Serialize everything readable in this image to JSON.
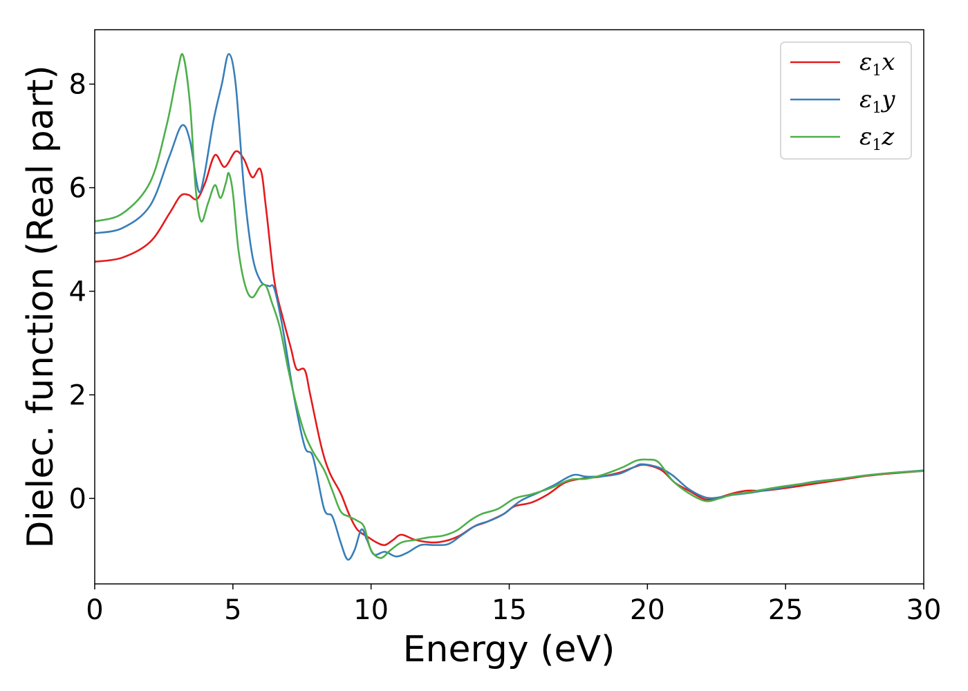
{
  "chart_data": {
    "type": "line",
    "xlabel": "Energy (eV)",
    "ylabel": "Dielec. function (Real part)",
    "xlim": [
      0,
      30
    ],
    "ylim": [
      -1.65,
      9.05
    ],
    "xticks": [
      0,
      5,
      10,
      15,
      20,
      25,
      30
    ],
    "yticks": [
      0,
      2,
      4,
      6,
      8
    ],
    "grid": false,
    "legend_position": "top-right",
    "series": [
      {
        "name": "ε₁x",
        "legend_base": "ε",
        "legend_sub": "1",
        "legend_suffix": "x",
        "color": "#e41a1c",
        "points": [
          [
            0,
            4.57
          ],
          [
            1,
            4.65
          ],
          [
            2,
            4.95
          ],
          [
            2.7,
            5.5
          ],
          [
            3.1,
            5.84
          ],
          [
            3.4,
            5.86
          ],
          [
            3.7,
            5.78
          ],
          [
            4.0,
            6.1
          ],
          [
            4.35,
            6.63
          ],
          [
            4.7,
            6.4
          ],
          [
            5.1,
            6.7
          ],
          [
            5.4,
            6.55
          ],
          [
            5.7,
            6.2
          ],
          [
            6.0,
            6.35
          ],
          [
            6.2,
            5.6
          ],
          [
            6.5,
            4.2
          ],
          [
            6.8,
            3.5
          ],
          [
            7.1,
            2.9
          ],
          [
            7.3,
            2.5
          ],
          [
            7.6,
            2.48
          ],
          [
            7.8,
            2.0
          ],
          [
            8.2,
            1.0
          ],
          [
            8.5,
            0.5
          ],
          [
            8.9,
            0.1
          ],
          [
            9.2,
            -0.3
          ],
          [
            9.5,
            -0.6
          ],
          [
            9.9,
            -0.75
          ],
          [
            10.2,
            -0.85
          ],
          [
            10.5,
            -0.9
          ],
          [
            10.8,
            -0.8
          ],
          [
            11.1,
            -0.7
          ],
          [
            11.6,
            -0.8
          ],
          [
            12.2,
            -0.85
          ],
          [
            12.7,
            -0.82
          ],
          [
            13.2,
            -0.72
          ],
          [
            13.7,
            -0.55
          ],
          [
            14.2,
            -0.45
          ],
          [
            14.8,
            -0.3
          ],
          [
            15.2,
            -0.15
          ],
          [
            15.8,
            -0.08
          ],
          [
            16.4,
            0.08
          ],
          [
            17.0,
            0.3
          ],
          [
            17.6,
            0.38
          ],
          [
            18.3,
            0.42
          ],
          [
            19.0,
            0.5
          ],
          [
            19.5,
            0.6
          ],
          [
            19.9,
            0.65
          ],
          [
            20.5,
            0.55
          ],
          [
            21.0,
            0.3
          ],
          [
            21.5,
            0.15
          ],
          [
            22.1,
            -0.02
          ],
          [
            22.6,
            0.02
          ],
          [
            23.1,
            0.1
          ],
          [
            23.6,
            0.15
          ],
          [
            24.2,
            0.15
          ],
          [
            25.0,
            0.2
          ],
          [
            26.0,
            0.28
          ],
          [
            27.0,
            0.36
          ],
          [
            28.0,
            0.44
          ],
          [
            29.0,
            0.49
          ],
          [
            30,
            0.53
          ]
        ]
      },
      {
        "name": "ε₁y",
        "legend_base": "ε",
        "legend_sub": "1",
        "legend_suffix": "y",
        "color": "#377eb8",
        "points": [
          [
            0,
            5.12
          ],
          [
            1,
            5.22
          ],
          [
            2,
            5.65
          ],
          [
            2.7,
            6.6
          ],
          [
            3.15,
            7.2
          ],
          [
            3.45,
            6.9
          ],
          [
            3.75,
            5.95
          ],
          [
            3.95,
            6.2
          ],
          [
            4.3,
            7.3
          ],
          [
            4.6,
            8.0
          ],
          [
            4.85,
            8.58
          ],
          [
            5.1,
            8.0
          ],
          [
            5.4,
            6.0
          ],
          [
            5.7,
            4.7
          ],
          [
            6.0,
            4.2
          ],
          [
            6.3,
            4.1
          ],
          [
            6.5,
            4.05
          ],
          [
            6.8,
            3.3
          ],
          [
            7.2,
            2.0
          ],
          [
            7.6,
            1.0
          ],
          [
            7.9,
            0.8
          ],
          [
            8.3,
            -0.2
          ],
          [
            8.6,
            -0.35
          ],
          [
            8.9,
            -0.85
          ],
          [
            9.15,
            -1.18
          ],
          [
            9.4,
            -1.0
          ],
          [
            9.65,
            -0.6
          ],
          [
            9.85,
            -0.8
          ],
          [
            10.1,
            -1.08
          ],
          [
            10.5,
            -1.03
          ],
          [
            10.9,
            -1.12
          ],
          [
            11.3,
            -1.05
          ],
          [
            11.8,
            -0.9
          ],
          [
            12.3,
            -0.9
          ],
          [
            12.8,
            -0.88
          ],
          [
            13.3,
            -0.7
          ],
          [
            13.8,
            -0.52
          ],
          [
            14.3,
            -0.43
          ],
          [
            14.8,
            -0.3
          ],
          [
            15.4,
            -0.05
          ],
          [
            16.0,
            0.1
          ],
          [
            16.6,
            0.25
          ],
          [
            17.3,
            0.45
          ],
          [
            17.8,
            0.42
          ],
          [
            18.4,
            0.43
          ],
          [
            19.0,
            0.48
          ],
          [
            19.5,
            0.6
          ],
          [
            19.8,
            0.66
          ],
          [
            20.4,
            0.6
          ],
          [
            20.9,
            0.45
          ],
          [
            21.5,
            0.18
          ],
          [
            22.1,
            0.02
          ],
          [
            22.6,
            0.02
          ],
          [
            23.1,
            0.07
          ],
          [
            23.6,
            0.1
          ],
          [
            24.2,
            0.15
          ],
          [
            25.0,
            0.22
          ],
          [
            26.0,
            0.32
          ],
          [
            27.0,
            0.38
          ],
          [
            28.0,
            0.45
          ],
          [
            29.0,
            0.5
          ],
          [
            30,
            0.54
          ]
        ]
      },
      {
        "name": "ε₁z",
        "legend_base": "ε",
        "legend_sub": "1",
        "legend_suffix": "z",
        "color": "#4daf4a",
        "points": [
          [
            0,
            5.35
          ],
          [
            1,
            5.5
          ],
          [
            2,
            6.1
          ],
          [
            2.6,
            7.2
          ],
          [
            3.0,
            8.25
          ],
          [
            3.2,
            8.55
          ],
          [
            3.45,
            7.6
          ],
          [
            3.65,
            6.0
          ],
          [
            3.85,
            5.35
          ],
          [
            4.1,
            5.7
          ],
          [
            4.35,
            6.05
          ],
          [
            4.55,
            5.8
          ],
          [
            4.75,
            6.1
          ],
          [
            4.85,
            6.28
          ],
          [
            5.0,
            5.9
          ],
          [
            5.2,
            4.8
          ],
          [
            5.45,
            4.1
          ],
          [
            5.7,
            3.88
          ],
          [
            6.0,
            4.1
          ],
          [
            6.2,
            4.1
          ],
          [
            6.4,
            3.8
          ],
          [
            6.7,
            3.3
          ],
          [
            7.0,
            2.5
          ],
          [
            7.3,
            1.8
          ],
          [
            7.6,
            1.25
          ],
          [
            7.9,
            0.9
          ],
          [
            8.3,
            0.55
          ],
          [
            8.6,
            0.15
          ],
          [
            8.9,
            -0.25
          ],
          [
            9.2,
            -0.35
          ],
          [
            9.5,
            -0.43
          ],
          [
            9.75,
            -0.55
          ],
          [
            10.0,
            -1.0
          ],
          [
            10.35,
            -1.15
          ],
          [
            10.7,
            -1.0
          ],
          [
            11.1,
            -0.85
          ],
          [
            11.6,
            -0.8
          ],
          [
            12.1,
            -0.75
          ],
          [
            12.6,
            -0.72
          ],
          [
            13.1,
            -0.62
          ],
          [
            13.6,
            -0.42
          ],
          [
            14.0,
            -0.3
          ],
          [
            14.6,
            -0.2
          ],
          [
            15.2,
            0.0
          ],
          [
            15.8,
            0.08
          ],
          [
            16.5,
            0.2
          ],
          [
            17.2,
            0.36
          ],
          [
            17.8,
            0.38
          ],
          [
            18.4,
            0.46
          ],
          [
            19.1,
            0.6
          ],
          [
            19.6,
            0.73
          ],
          [
            20.0,
            0.75
          ],
          [
            20.4,
            0.7
          ],
          [
            20.9,
            0.35
          ],
          [
            21.5,
            0.1
          ],
          [
            22.1,
            -0.05
          ],
          [
            22.6,
            0.0
          ],
          [
            23.1,
            0.08
          ],
          [
            23.6,
            0.11
          ],
          [
            24.2,
            0.17
          ],
          [
            25.0,
            0.24
          ],
          [
            26.0,
            0.31
          ],
          [
            27.0,
            0.38
          ],
          [
            28.0,
            0.45
          ],
          [
            29.0,
            0.5
          ],
          [
            30,
            0.53
          ]
        ]
      }
    ]
  }
}
